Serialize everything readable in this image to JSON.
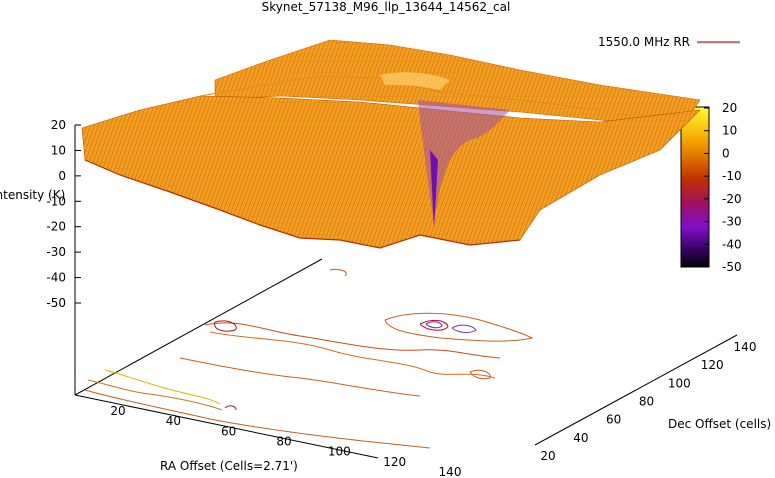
{
  "chart_data": {
    "type": "surface",
    "title": "Skynet_57138_M96_llp_13644_14562_cal",
    "legend": {
      "label": "1550.0 MHz RR",
      "placement": "top-right"
    },
    "zlabel": "Intensity (K)",
    "xlabel": "RA Offset (Cells=2.71')",
    "ylabel": "Dec Offset (cells)",
    "z_ticks": [
      "20",
      "10",
      "0",
      "-10",
      "-20",
      "-30",
      "-40",
      "-50"
    ],
    "x_ticks": [
      "20",
      "40",
      "60",
      "80",
      "100",
      "120",
      "140"
    ],
    "y_ticks": [
      "20",
      "40",
      "60",
      "80",
      "100",
      "120",
      "140"
    ],
    "colorbar_ticks": [
      "20",
      "10",
      "0",
      "-10",
      "-20",
      "-30",
      "-40",
      "-50"
    ],
    "zlim": [
      -50,
      20
    ],
    "colorbar_range": [
      -50,
      20
    ],
    "colors": {
      "high": "#ffee00",
      "mid": "#e07000",
      "low": "#6a008a",
      "min": "#000000",
      "legend_line": "#7a38a8"
    }
  }
}
